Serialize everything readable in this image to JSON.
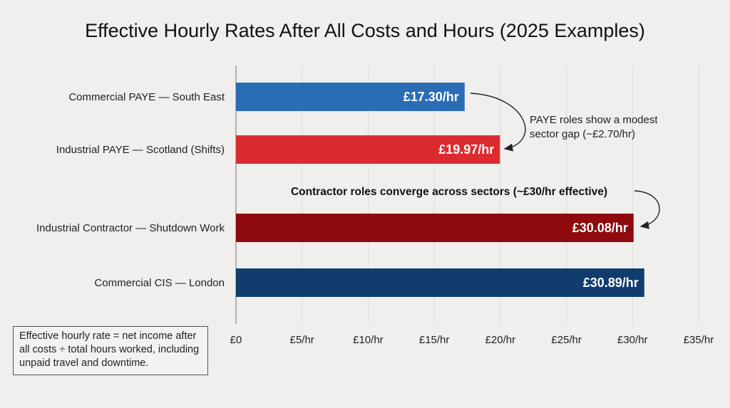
{
  "chart_data": {
    "type": "bar",
    "orientation": "horizontal",
    "title": "Effective Hourly Rates After All Costs and Hours (2025 Examples)",
    "categories": [
      "Commercial PAYE — South East",
      "Industrial PAYE — Scotland (Shifts)",
      "Industrial Contractor — Shutdown Work",
      "Commercial CIS — London"
    ],
    "values": [
      17.3,
      19.97,
      30.08,
      30.89
    ],
    "data_labels": [
      "£17.30/hr",
      "£19.97/hr",
      "£30.08/hr",
      "£30.89/hr"
    ],
    "colors": [
      "#2a6db5",
      "#dc2b30",
      "#8e0a0c",
      "#103d6e"
    ],
    "xlim": [
      0,
      35
    ],
    "x_ticks": [
      0,
      5,
      10,
      15,
      20,
      25,
      30,
      35
    ],
    "x_tick_labels": [
      "£0",
      "£5/hr",
      "£10/hr",
      "£15/hr",
      "£20/hr",
      "£25/hr",
      "£30/hr",
      "£35/hr"
    ],
    "grid": "vertical",
    "annotations": [
      {
        "text_lines": [
          "PAYE roles show a modest",
          "sector gap (~£2.70/hr)"
        ]
      },
      {
        "text": "Contractor roles converge across sectors (~£30/hr effective)"
      }
    ],
    "footnote": "Effective hourly rate = net income after all costs ÷ total hours worked, including unpaid travel and downtime."
  }
}
